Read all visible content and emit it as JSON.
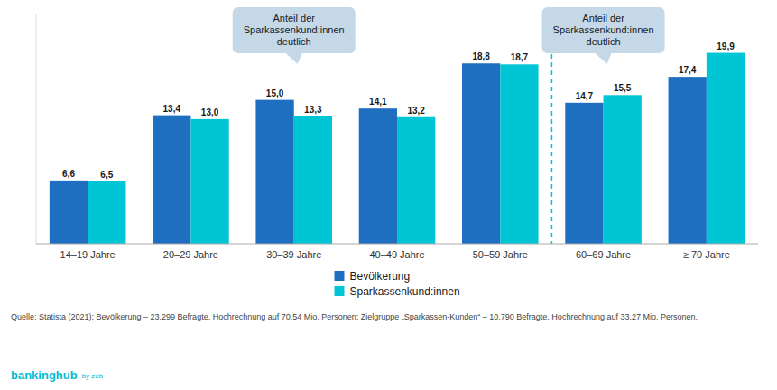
{
  "chart_data": {
    "type": "bar",
    "categories": [
      "14–19 Jahre",
      "20–29 Jahre",
      "30–39 Jahre",
      "40–49 Jahre",
      "50–59 Jahre",
      "60–69 Jahre",
      "≥ 70 Jahre"
    ],
    "series": [
      {
        "name": "Bevölkerung",
        "color": "#1E6FBF",
        "values": [
          6.6,
          13.4,
          15.0,
          14.1,
          18.8,
          14.7,
          17.4
        ],
        "value_labels": [
          "6,6",
          "13,4",
          "15,0",
          "14,1",
          "18,8",
          "14,7",
          "17,4"
        ]
      },
      {
        "name": "Sparkassenkund:innen",
        "color": "#00C5D4",
        "values": [
          6.5,
          13.0,
          13.3,
          13.2,
          18.7,
          15.5,
          19.9
        ],
        "value_labels": [
          "6,5",
          "13,0",
          "13,3",
          "13,2",
          "18,7",
          "15,5",
          "19,9"
        ]
      }
    ],
    "ylim": [
      0,
      24
    ],
    "grid": false,
    "legend": "bottom",
    "data_labels": true,
    "tick_labels": "x",
    "annotations": [
      "Anteil der\nSparkassenkund:innen\ndeutlich",
      "Anteil der\nSparkassenkund:innen\ndeutlich"
    ],
    "source": "Quelle: Statista (2021); Bevölkerung – 23.299 Befragte, Hochrechnung auf 70,54 Mio. Personen; Zielgruppe „Sparkassen-Kunden“ – 10.790 Befragte, Hochrechnung auf 33,27 Mio. Personen.",
    "logo": [
      "bankinghub",
      "by zeb"
    ]
  }
}
